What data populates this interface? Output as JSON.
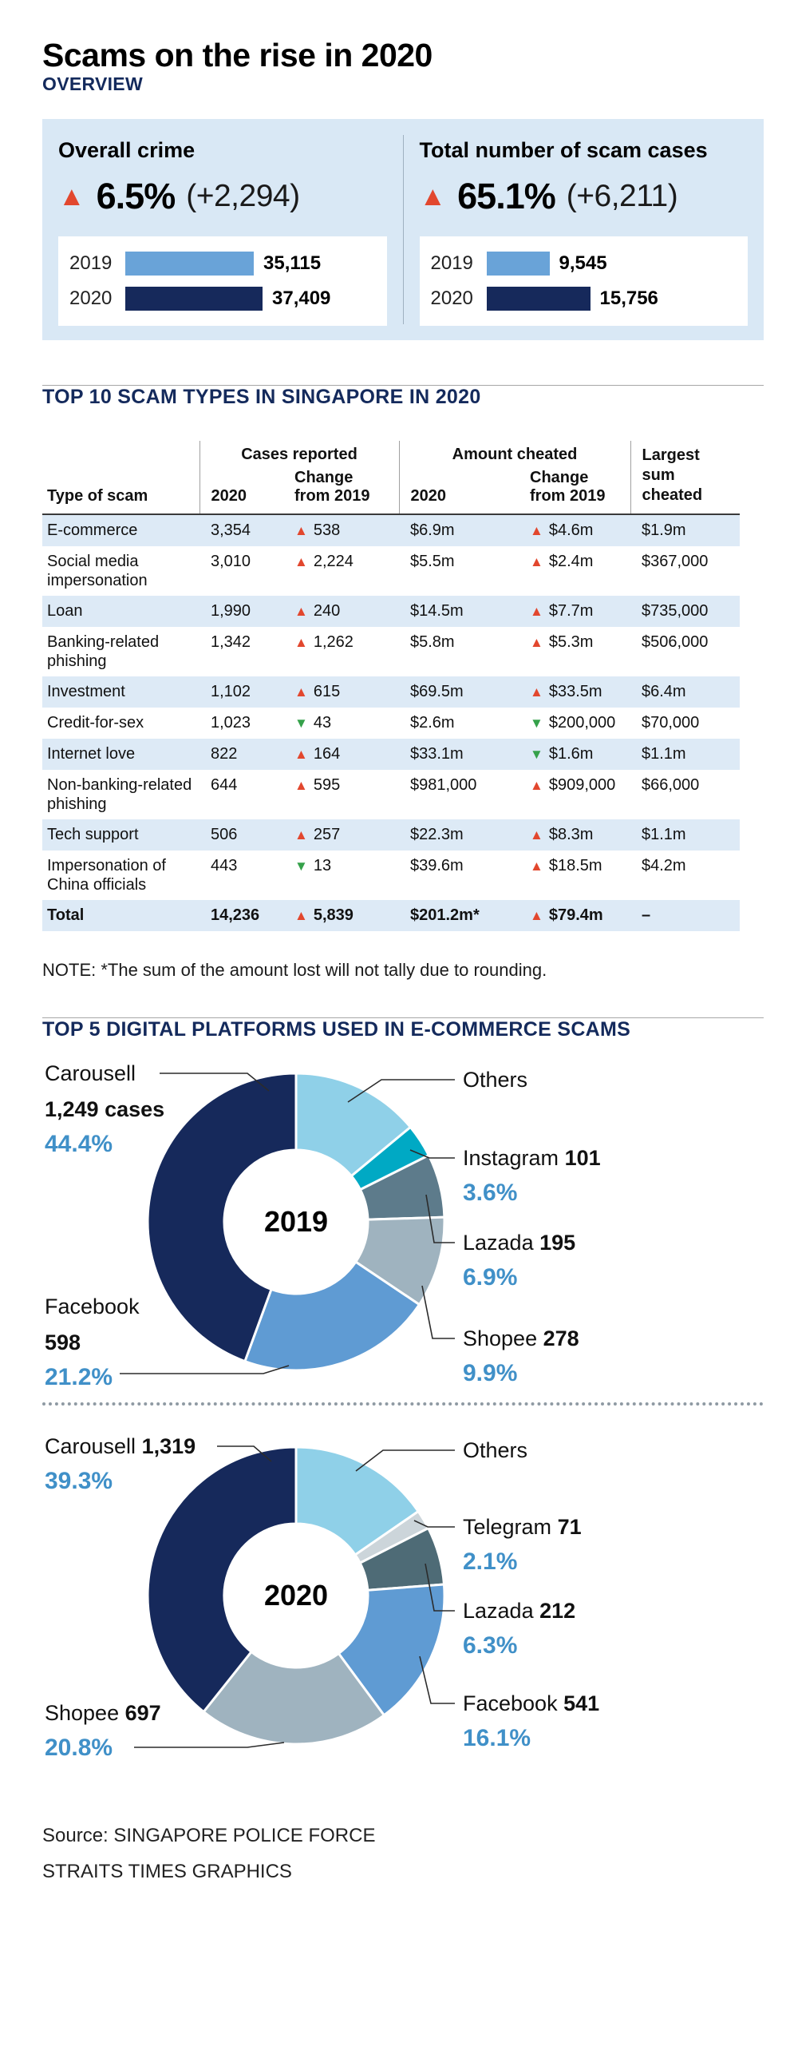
{
  "title": "Scams on the rise in 2020",
  "sections": {
    "overview": {
      "heading": "OVERVIEW"
    },
    "table": {
      "heading": "TOP 10 SCAM TYPES IN SINGAPORE IN 2020",
      "note": "NOTE: *The sum of the amount lost will not tally due to rounding."
    },
    "platforms": {
      "heading": "TOP 5 DIGITAL PLATFORMS USED IN E-COMMERCE SCAMS"
    }
  },
  "source": {
    "line1": "Source: SINGAPORE POLICE FORCE",
    "line2": "STRAITS TIMES GRAPHICS"
  },
  "icons": {
    "up_triangle": "▲",
    "down_triangle": "▼"
  },
  "colors": {
    "navy": "#16295b",
    "bar_blue": "#69a3d8",
    "panel_bg": "#d9e8f5",
    "row_stripe": "#ddeaf6",
    "pct_blue": "#4090c8",
    "tri_red": "#e2472e",
    "tri_green": "#35a14a",
    "heading_navy": "#142a5c"
  },
  "chart_data": [
    {
      "id": "overall_crime",
      "type": "bar",
      "title": "Overall crime",
      "direction": "up",
      "change_pct": "6.5%",
      "change_abs": "(+2,294)",
      "categories": [
        "2019",
        "2020"
      ],
      "values": [
        35115,
        37409
      ],
      "value_labels": [
        "35,115",
        "37,409"
      ],
      "bar_colors": [
        "#69a3d8",
        "#16295b"
      ]
    },
    {
      "id": "total_scam_cases",
      "type": "bar",
      "title": "Total number of scam cases",
      "direction": "up",
      "change_pct": "65.1%",
      "change_abs": "(+6,211)",
      "categories": [
        "2019",
        "2020"
      ],
      "values": [
        9545,
        15756
      ],
      "value_labels": [
        "9,545",
        "15,756"
      ],
      "bar_colors": [
        "#69a3d8",
        "#16295b"
      ]
    },
    {
      "id": "top10_scam_types",
      "type": "table",
      "col_groups": [
        "Cases reported",
        "Amount cheated"
      ],
      "headers": [
        "Type of scam",
        "2020",
        "Change from 2019",
        "2020",
        "Change from 2019",
        "Largest sum cheated"
      ],
      "rows": [
        {
          "type": "E-commerce",
          "cases": "3,354",
          "cases_change": {
            "dir": "up",
            "val": "538"
          },
          "amount": "$6.9m",
          "amount_change": {
            "dir": "up",
            "val": "$4.6m"
          },
          "largest": "$1.9m"
        },
        {
          "type": "Social media impersonation",
          "cases": "3,010",
          "cases_change": {
            "dir": "up",
            "val": "2,224"
          },
          "amount": "$5.5m",
          "amount_change": {
            "dir": "up",
            "val": "$2.4m"
          },
          "largest": "$367,000"
        },
        {
          "type": "Loan",
          "cases": "1,990",
          "cases_change": {
            "dir": "up",
            "val": "240"
          },
          "amount": "$14.5m",
          "amount_change": {
            "dir": "up",
            "val": "$7.7m"
          },
          "largest": "$735,000"
        },
        {
          "type": "Banking-related phishing",
          "cases": "1,342",
          "cases_change": {
            "dir": "up",
            "val": "1,262"
          },
          "amount": "$5.8m",
          "amount_change": {
            "dir": "up",
            "val": "$5.3m"
          },
          "largest": "$506,000"
        },
        {
          "type": "Investment",
          "cases": "1,102",
          "cases_change": {
            "dir": "up",
            "val": "615"
          },
          "amount": "$69.5m",
          "amount_change": {
            "dir": "up",
            "val": "$33.5m"
          },
          "largest": "$6.4m"
        },
        {
          "type": "Credit-for-sex",
          "cases": "1,023",
          "cases_change": {
            "dir": "down",
            "val": "43"
          },
          "amount": "$2.6m",
          "amount_change": {
            "dir": "down",
            "val": "$200,000"
          },
          "largest": "$70,000"
        },
        {
          "type": "Internet love",
          "cases": "822",
          "cases_change": {
            "dir": "up",
            "val": "164"
          },
          "amount": "$33.1m",
          "amount_change": {
            "dir": "down",
            "val": "$1.6m"
          },
          "largest": "$1.1m"
        },
        {
          "type": "Non-banking-related phishing",
          "cases": "644",
          "cases_change": {
            "dir": "up",
            "val": "595"
          },
          "amount": "$981,000",
          "amount_change": {
            "dir": "up",
            "val": "$909,000"
          },
          "largest": "$66,000"
        },
        {
          "type": "Tech support",
          "cases": "506",
          "cases_change": {
            "dir": "up",
            "val": "257"
          },
          "amount": "$22.3m",
          "amount_change": {
            "dir": "up",
            "val": "$8.3m"
          },
          "largest": "$1.1m"
        },
        {
          "type": "Impersonation of China officials",
          "cases": "443",
          "cases_change": {
            "dir": "down",
            "val": "13"
          },
          "amount": "$39.6m",
          "amount_change": {
            "dir": "up",
            "val": "$18.5m"
          },
          "largest": "$4.2m"
        },
        {
          "type": "Total",
          "bold": true,
          "cases": "14,236",
          "cases_change": {
            "dir": "up",
            "val": "5,839"
          },
          "amount": "$201.2m*",
          "amount_change": {
            "dir": "up",
            "val": "$79.4m"
          },
          "largest": "–"
        }
      ]
    },
    {
      "id": "platforms_2019",
      "type": "pie",
      "center_label": "2019",
      "slices": [
        {
          "name": "Others",
          "pct": 14.0,
          "color": "#8fd0e8"
        },
        {
          "name": "Instagram",
          "cases_label": "101",
          "pct": 3.6,
          "pct_label": "3.6%",
          "color": "#00a9c4"
        },
        {
          "name": "Lazada",
          "cases_label": "195",
          "pct": 6.9,
          "pct_label": "6.9%",
          "color": "#5d7b8b"
        },
        {
          "name": "Shopee",
          "cases_label": "278",
          "pct": 9.9,
          "pct_label": "9.9%",
          "color": "#9fb3bf"
        },
        {
          "name": "Facebook",
          "cases_label": "598",
          "pct": 21.2,
          "pct_label": "21.2%",
          "color": "#5f9bd3"
        },
        {
          "name": "Carousell",
          "cases_label": "1,249 cases",
          "pct": 44.4,
          "pct_label": "44.4%",
          "color": "#16295b"
        }
      ]
    },
    {
      "id": "platforms_2020",
      "type": "pie",
      "center_label": "2020",
      "slices": [
        {
          "name": "Others",
          "pct": 15.4,
          "color": "#8fd0e8"
        },
        {
          "name": "Telegram",
          "cases_label": "71",
          "pct": 2.1,
          "pct_label": "2.1%",
          "color": "#ccd5da"
        },
        {
          "name": "Lazada",
          "cases_label": "212",
          "pct": 6.3,
          "pct_label": "6.3%",
          "color": "#4e6b76"
        },
        {
          "name": "Facebook",
          "cases_label": "541",
          "pct": 16.1,
          "pct_label": "16.1%",
          "color": "#5f9bd3"
        },
        {
          "name": "Shopee",
          "cases_label": "697",
          "pct": 20.8,
          "pct_label": "20.8%",
          "color": "#9fb3bf"
        },
        {
          "name": "Carousell",
          "cases_label": "1,319",
          "pct": 39.3,
          "pct_label": "39.3%",
          "color": "#16295b"
        }
      ]
    }
  ]
}
